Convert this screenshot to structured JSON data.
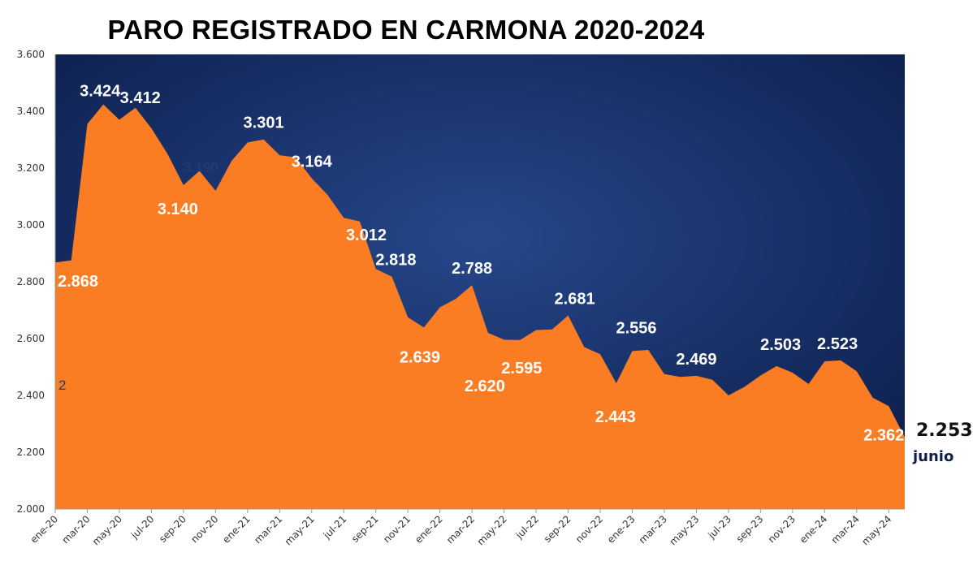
{
  "chart_data": {
    "type": "area",
    "title": "PARO REGISTRADO EN CARMONA 2020-2024",
    "xlabel": "",
    "ylabel": "",
    "ylim": [
      2000,
      3600
    ],
    "yticks": [
      "2.000",
      "2.200",
      "2.400",
      "2.600",
      "2.800",
      "3.000",
      "3.200",
      "3.400",
      "3.600"
    ],
    "x_tick_labels": [
      "ene-20",
      "mar-20",
      "may-20",
      "jul-20",
      "sep-20",
      "nov-20",
      "ene-21",
      "mar-21",
      "may-21",
      "jul-21",
      "sep-21",
      "nov-21",
      "ene-22",
      "mar-22",
      "may-22",
      "jul-22",
      "sep-22",
      "nov-22",
      "ene-23",
      "mar-23",
      "may-23",
      "jul-23",
      "sep-23",
      "nov-23",
      "ene-24",
      "mar-24",
      "may-24"
    ],
    "categories": [
      "ene-20",
      "feb-20",
      "mar-20",
      "abr-20",
      "may-20",
      "jun-20",
      "jul-20",
      "ago-20",
      "sep-20",
      "oct-20",
      "nov-20",
      "dic-20",
      "ene-21",
      "feb-21",
      "mar-21",
      "abr-21",
      "may-21",
      "jun-21",
      "jul-21",
      "ago-21",
      "sep-21",
      "oct-21",
      "nov-21",
      "dic-21",
      "ene-22",
      "feb-22",
      "mar-22",
      "abr-22",
      "may-22",
      "jun-22",
      "jul-22",
      "ago-22",
      "sep-22",
      "oct-22",
      "nov-22",
      "dic-22",
      "ene-23",
      "feb-23",
      "mar-23",
      "abr-23",
      "may-23",
      "jun-23",
      "jul-23",
      "ago-23",
      "sep-23",
      "oct-23",
      "nov-23",
      "dic-23",
      "ene-24",
      "feb-24",
      "mar-24",
      "abr-24",
      "may-24",
      "jun-24"
    ],
    "values": [
      2868,
      2875,
      3355,
      3424,
      3370,
      3412,
      3340,
      3250,
      3140,
      3190,
      3120,
      3225,
      3290,
      3301,
      3245,
      3238,
      3164,
      3105,
      3025,
      3012,
      2845,
      2818,
      2675,
      2639,
      2710,
      2740,
      2788,
      2620,
      2596,
      2595,
      2630,
      2632,
      2681,
      2570,
      2545,
      2443,
      2556,
      2560,
      2475,
      2465,
      2469,
      2455,
      2400,
      2430,
      2470,
      2503,
      2480,
      2440,
      2520,
      2523,
      2485,
      2392,
      2362,
      2253
    ],
    "data_labels": [
      {
        "index": 0,
        "text": "2.868"
      },
      {
        "index": 3,
        "text": "3.424"
      },
      {
        "index": 5,
        "text": "3.412"
      },
      {
        "index": 8,
        "text": "3.140"
      },
      {
        "index": 13,
        "text": "3.301"
      },
      {
        "index": 16,
        "text": "3.164"
      },
      {
        "index": 19,
        "text": "3.012"
      },
      {
        "index": 21,
        "text": "2.818"
      },
      {
        "index": 23,
        "text": "2.639"
      },
      {
        "index": 26,
        "text": "2.788"
      },
      {
        "index": 27,
        "text": "2.620"
      },
      {
        "index": 29,
        "text": "2.595"
      },
      {
        "index": 32,
        "text": "2.681"
      },
      {
        "index": 35,
        "text": "2.443"
      },
      {
        "index": 36,
        "text": "2.556"
      },
      {
        "index": 40,
        "text": "2.469"
      },
      {
        "index": 45,
        "text": "2.503"
      },
      {
        "index": 49,
        "text": "2.523"
      },
      {
        "index": 52,
        "text": "2.362"
      }
    ],
    "faint_labels": [
      {
        "index": 9,
        "text": "3.190"
      },
      {
        "index": 0,
        "text": "2"
      }
    ],
    "last_point": {
      "value": "2.253",
      "label": "junio"
    },
    "colors": {
      "area": "#fb7d23",
      "plot_background": "#0d1e4c",
      "background_glow": "#26478a",
      "label": "#ffffff"
    },
    "grid": false,
    "legend": "none"
  }
}
